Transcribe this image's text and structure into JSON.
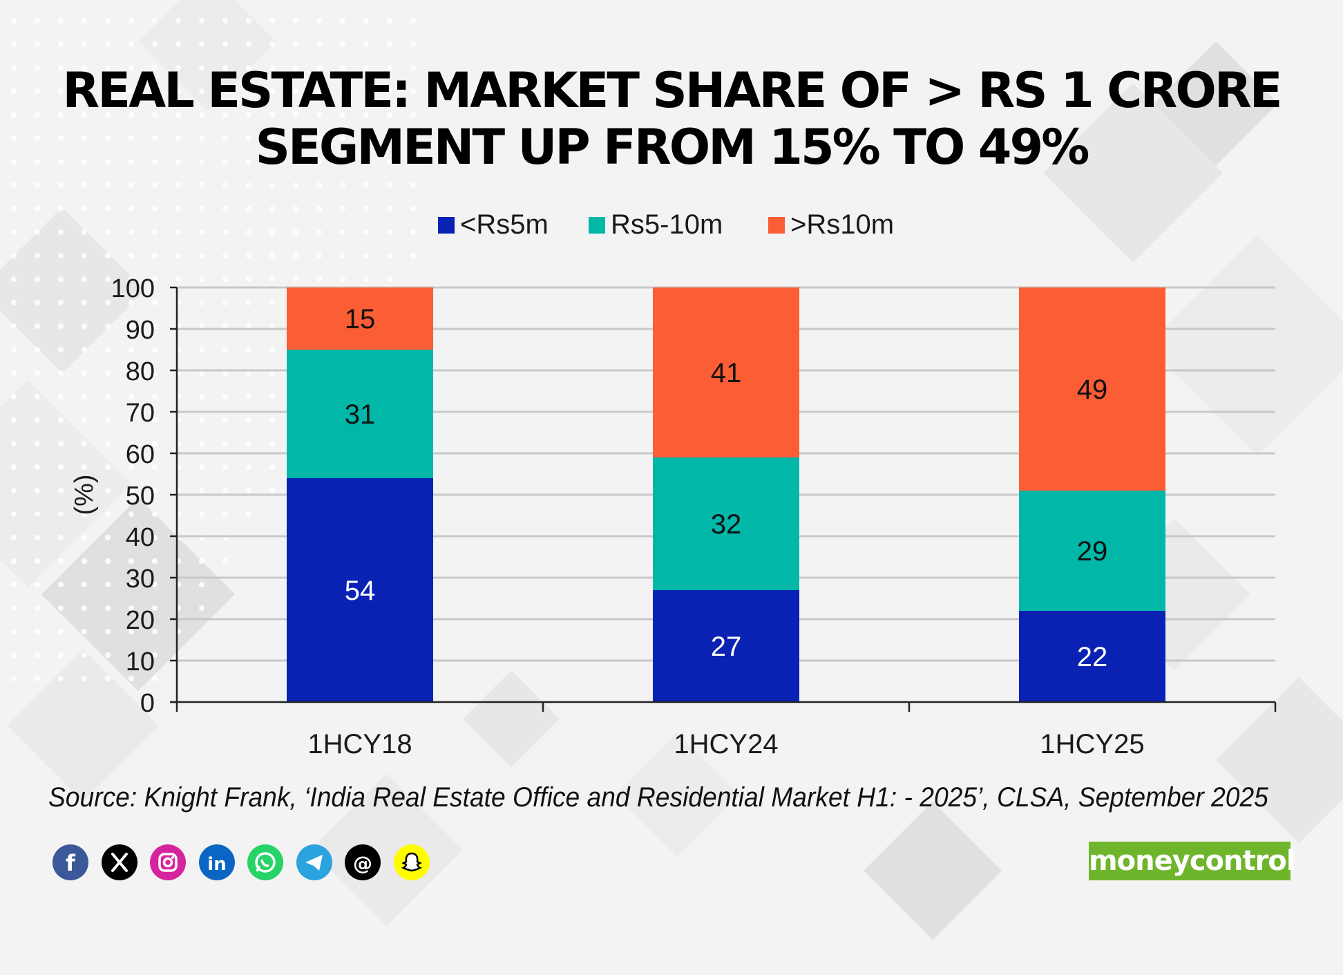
{
  "title": {
    "line1": "REAL ESTATE: MARKET SHARE OF > RS 1 CRORE",
    "line2": "SEGMENT UP FROM 15% TO 49%"
  },
  "source": "Source: Knight Frank, ‘India Real Estate Office and Residential Market H1: - 2025’, CLSA, September 2025",
  "brand": "moneycontrol",
  "social": [
    "facebook",
    "x",
    "instagram",
    "linkedin",
    "whatsapp",
    "telegram",
    "threads",
    "snapchat"
  ],
  "chart_data": {
    "type": "bar",
    "stacked": true,
    "categories": [
      "1HCY18",
      "1HCY24",
      "1HCY25"
    ],
    "series": [
      {
        "name": "<Rs5m",
        "color": "#0a22b4",
        "values": [
          54,
          27,
          22
        ]
      },
      {
        "name": "Rs5-10m",
        "color": "#00b7a8",
        "values": [
          31,
          32,
          29
        ]
      },
      {
        "name": ">Rs10m",
        "color": "#fb5d35",
        "values": [
          15,
          41,
          49
        ]
      }
    ],
    "ylabel": "(%)",
    "ylim": [
      0,
      100
    ],
    "yticks": [
      0,
      10,
      20,
      30,
      40,
      50,
      60,
      70,
      80,
      90,
      100
    ],
    "grid": true,
    "legend": "top-center"
  }
}
